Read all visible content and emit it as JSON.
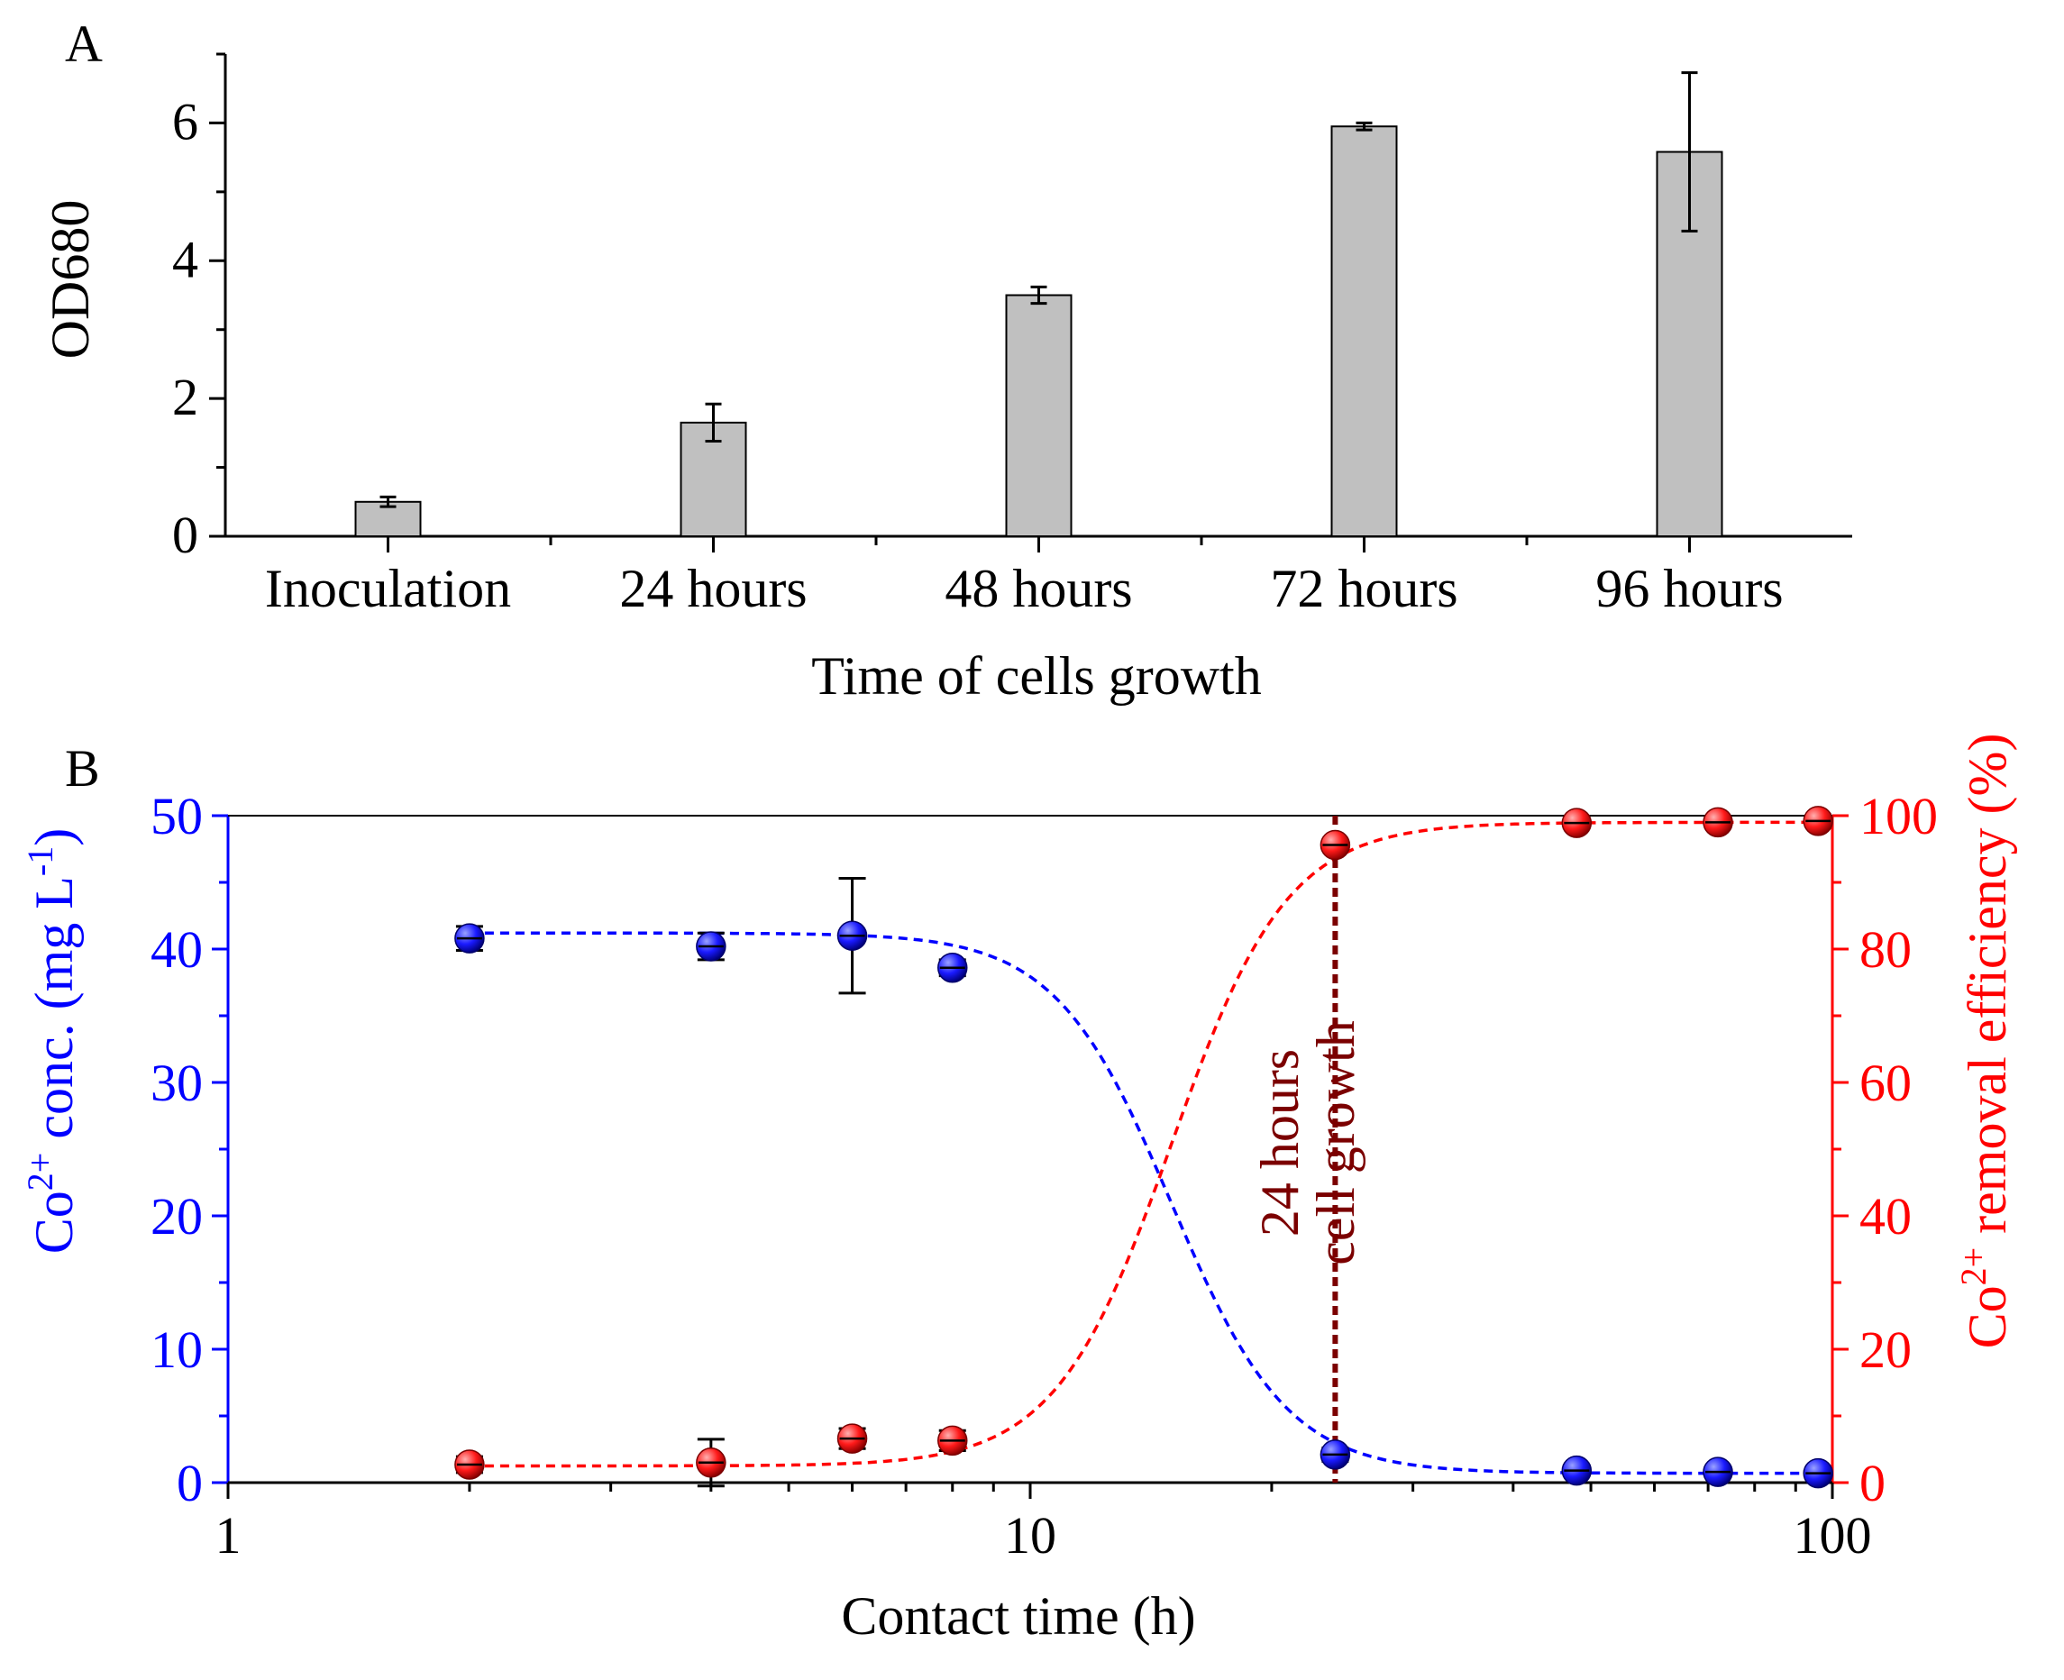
{
  "panel_a": {
    "label": "A",
    "chart_data": {
      "type": "bar",
      "title": "",
      "categories": [
        "Inoculation",
        "24 hours",
        "48 hours",
        "72 hours",
        "96 hours"
      ],
      "values": [
        0.5,
        1.65,
        3.5,
        5.95,
        5.58
      ],
      "errors": [
        0.07,
        0.27,
        0.12,
        0.05,
        1.15
      ],
      "xlabel": "Time of cells growth",
      "ylabel": "OD680",
      "ylim": [
        0,
        7
      ],
      "yticks": [
        "0",
        "2",
        "4",
        "6"
      ],
      "bar_color": "#c0c0c0"
    }
  },
  "panel_b": {
    "label": "B",
    "chart_data": {
      "type": "scatter",
      "xscale": "log",
      "xlim": [
        1,
        100
      ],
      "xlabel": "Contact time (h)",
      "xticks": [
        "1",
        "10",
        "100"
      ],
      "ylabel_left": "Co2+ conc. (mg L-1)",
      "ylabel_left_parts": {
        "base": "Co",
        "sup": "2+",
        "mid": " conc. (mg L",
        "sup2": "-1",
        "end": ")"
      },
      "ylim_left": [
        0,
        50
      ],
      "yticks_left": [
        "0",
        "10",
        "20",
        "30",
        "40",
        "50"
      ],
      "ylabel_right": "Co2+ removal efficiency (%)",
      "ylabel_right_parts": {
        "base": "Co",
        "sup": "2+",
        "end": " removal efficiency (%)"
      },
      "ylim_right": [
        0,
        100
      ],
      "yticks_right": [
        "0",
        "20",
        "40",
        "60",
        "80",
        "100"
      ],
      "series": [
        {
          "name": "Co2+ conc.",
          "axis": "left",
          "color": "#0000ff",
          "x": [
            2,
            4,
            6,
            8,
            24,
            48,
            72,
            96
          ],
          "y": [
            40.8,
            40.2,
            41.0,
            38.6,
            2.1,
            0.9,
            0.8,
            0.7
          ],
          "err": [
            0.9,
            1.0,
            4.3,
            0.6,
            0.5,
            0.4,
            0.3,
            0.3
          ],
          "fit": {
            "top": 41.2,
            "bottom": 0.7,
            "x0": 15.0,
            "p": 6.0
          }
        },
        {
          "name": "Co2+ removal efficiency",
          "axis": "right",
          "color": "#ff0000",
          "x": [
            2,
            4,
            6,
            8,
            24,
            48,
            72,
            96
          ],
          "y": [
            2.7,
            3.0,
            6.6,
            6.3,
            95.6,
            98.9,
            99.0,
            99.2
          ],
          "err": [
            1.2,
            3.5,
            1.5,
            1.5,
            0.6,
            0.5,
            0.4,
            0.4
          ],
          "fit": {
            "bottom": 2.5,
            "top": 99.0,
            "x0": 15.0,
            "p": 6.0
          }
        }
      ],
      "marker_line": {
        "x": 24,
        "color": "#7b0000",
        "annotation": [
          "24 hours",
          "cell growth"
        ]
      }
    }
  }
}
